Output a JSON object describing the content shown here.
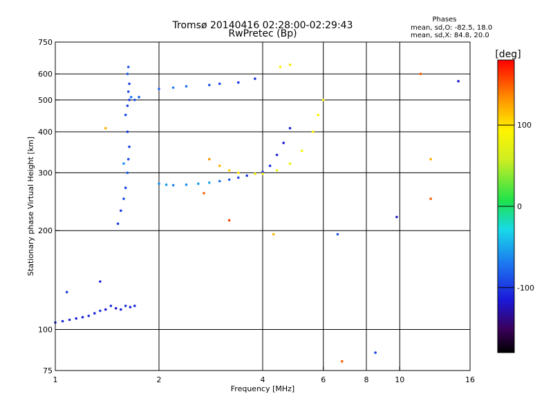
{
  "header": {
    "title": "Tromsø 20140416 02:28:00-02:29:43",
    "subtitle": "RwPretec (Bp)",
    "phases_title": "Phases",
    "phases_o": "mean, sd,O: -82.5, 18.0",
    "phases_x": "mean, sd,X:  84.8, 20.0"
  },
  "colorbar": {
    "unit": "[deg]",
    "ticks": [
      {
        "value": 100,
        "label": "100"
      },
      {
        "value": 0,
        "label": "0"
      },
      {
        "value": -100,
        "label": "-100"
      }
    ],
    "min": -180,
    "max": 180
  },
  "chart_data": {
    "type": "scatter",
    "title": "Tromsø 20140416 02:28:00-02:29:43",
    "subtitle": "RwPretec (Bp)",
    "xlabel": "Frequency [MHz]",
    "ylabel": "Stationary phase Virtual Height [km]",
    "xscale": "log",
    "yscale": "log",
    "xlim": [
      1,
      16
    ],
    "ylim": [
      75,
      750
    ],
    "xticks": [
      {
        "value": 1,
        "label": "1"
      },
      {
        "value": 2,
        "label": "2"
      },
      {
        "value": 4,
        "label": "4"
      },
      {
        "value": 6,
        "label": "6"
      },
      {
        "value": 8,
        "label": "8"
      },
      {
        "value": 10,
        "label": "10"
      },
      {
        "value": 16,
        "label": "16"
      }
    ],
    "xgrid": [
      2,
      4,
      6,
      8,
      10
    ],
    "yticks": [
      {
        "value": 75,
        "label": "75"
      },
      {
        "value": 100,
        "label": "100"
      },
      {
        "value": 200,
        "label": "200"
      },
      {
        "value": 300,
        "label": "300"
      },
      {
        "value": 400,
        "label": "400"
      },
      {
        "value": 500,
        "label": "500"
      },
      {
        "value": 600,
        "label": "600"
      },
      {
        "value": 750,
        "label": "750"
      }
    ],
    "ygrid": [
      100,
      200,
      300,
      400,
      500,
      600
    ],
    "color_variable": "phase [deg]",
    "points": [
      [
        1.0,
        105,
        -105
      ],
      [
        1.05,
        106,
        -110
      ],
      [
        1.1,
        107,
        -108
      ],
      [
        1.15,
        108,
        -112
      ],
      [
        1.2,
        109,
        -110
      ],
      [
        1.25,
        110,
        -105
      ],
      [
        1.3,
        112,
        -110
      ],
      [
        1.35,
        114,
        -100
      ],
      [
        1.4,
        115,
        -115
      ],
      [
        1.45,
        118,
        -105
      ],
      [
        1.5,
        116,
        -120
      ],
      [
        1.55,
        115,
        -110
      ],
      [
        1.6,
        118,
        -100
      ],
      [
        1.65,
        117,
        -112
      ],
      [
        1.7,
        118,
        -108
      ],
      [
        1.52,
        210,
        -95
      ],
      [
        1.55,
        230,
        -100
      ],
      [
        1.58,
        250,
        -90
      ],
      [
        1.6,
        270,
        -95
      ],
      [
        1.62,
        300,
        -85
      ],
      [
        1.63,
        330,
        -90
      ],
      [
        1.64,
        360,
        -95
      ],
      [
        1.62,
        400,
        -100
      ],
      [
        1.6,
        450,
        -90
      ],
      [
        1.62,
        480,
        -95
      ],
      [
        1.64,
        500,
        -100
      ],
      [
        1.63,
        530,
        -90
      ],
      [
        1.64,
        560,
        -95
      ],
      [
        1.62,
        600,
        -85
      ],
      [
        1.63,
        630,
        -90
      ],
      [
        1.58,
        320,
        -60
      ],
      [
        1.66,
        510,
        -70
      ],
      [
        1.7,
        500,
        -90
      ],
      [
        1.75,
        510,
        -80
      ],
      [
        2.0,
        278,
        -60
      ],
      [
        2.1,
        276,
        -55
      ],
      [
        2.2,
        275,
        -65
      ],
      [
        2.4,
        276,
        -60
      ],
      [
        2.6,
        278,
        -55
      ],
      [
        2.8,
        280,
        -50
      ],
      [
        3.0,
        283,
        -75
      ],
      [
        3.2,
        286,
        -85
      ],
      [
        3.4,
        290,
        -95
      ],
      [
        3.6,
        294,
        -100
      ],
      [
        3.8,
        298,
        -105
      ],
      [
        4.0,
        302,
        -100
      ],
      [
        4.2,
        315,
        -105
      ],
      [
        4.4,
        340,
        -110
      ],
      [
        4.6,
        370,
        -115
      ],
      [
        4.8,
        410,
        -112
      ],
      [
        2.0,
        540,
        -80
      ],
      [
        2.2,
        545,
        -70
      ],
      [
        2.4,
        550,
        -75
      ],
      [
        2.8,
        555,
        -85
      ],
      [
        3.0,
        560,
        -95
      ],
      [
        3.4,
        565,
        -100
      ],
      [
        3.8,
        580,
        -105
      ],
      [
        2.8,
        330,
        130
      ],
      [
        3.0,
        315,
        120
      ],
      [
        3.2,
        305,
        110
      ],
      [
        3.4,
        300,
        100
      ],
      [
        3.8,
        298,
        90
      ],
      [
        4.0,
        298,
        85
      ],
      [
        4.4,
        305,
        80
      ],
      [
        4.8,
        320,
        80
      ],
      [
        5.2,
        350,
        85
      ],
      [
        5.6,
        400,
        90
      ],
      [
        5.8,
        450,
        95
      ],
      [
        6.0,
        500,
        85
      ],
      [
        4.5,
        630,
        95
      ],
      [
        4.8,
        640,
        100
      ],
      [
        1.08,
        130,
        -100
      ],
      [
        1.35,
        140,
        -110
      ],
      [
        1.4,
        410,
        120
      ],
      [
        2.7,
        260,
        150
      ],
      [
        3.2,
        215,
        160
      ],
      [
        4.3,
        195,
        120
      ],
      [
        6.6,
        195,
        -90
      ],
      [
        6.8,
        80,
        150
      ],
      [
        8.5,
        85,
        -95
      ],
      [
        9.8,
        220,
        -120
      ],
      [
        11.5,
        600,
        150
      ],
      [
        12.3,
        250,
        150
      ],
      [
        12.3,
        330,
        120
      ],
      [
        14.8,
        570,
        -120
      ]
    ]
  }
}
